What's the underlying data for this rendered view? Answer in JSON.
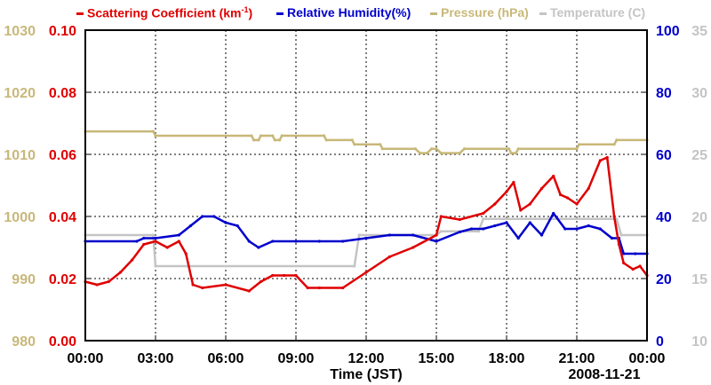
{
  "chart_data": {
    "type": "line",
    "legend": [
      {
        "label": "Scattering Coefficient (km",
        "sup": "-1",
        "tail": ")",
        "color": "#e00000"
      },
      {
        "label": "Relative Humidity(%)",
        "color": "#0000cc"
      },
      {
        "label": "Pressure (hPa)",
        "color": "#c8b878"
      },
      {
        "label": "Temperature (C)",
        "color": "#c4c4c4"
      }
    ],
    "xlabel": "Time (JST)",
    "date_label": "2008-11-21",
    "x_ticks": [
      "00:00",
      "03:00",
      "06:00",
      "09:00",
      "12:00",
      "15:00",
      "18:00",
      "21:00",
      "00:00"
    ],
    "xlim": [
      0,
      24
    ],
    "axes": {
      "pressure": {
        "ticks": [
          "980",
          "990",
          "1000",
          "1010",
          "1020",
          "1030"
        ],
        "ylim": [
          980,
          1030
        ],
        "color": "#c8b878"
      },
      "scattering": {
        "ticks": [
          "0.00",
          "0.02",
          "0.04",
          "0.06",
          "0.08",
          "0.10"
        ],
        "ylim": [
          0,
          0.1
        ],
        "color": "#e00000"
      },
      "humidity": {
        "ticks": [
          "0",
          "20",
          "40",
          "60",
          "80",
          "100"
        ],
        "ylim": [
          0,
          100
        ],
        "color": "#0000cc"
      },
      "temperature": {
        "ticks": [
          "10",
          "15",
          "20",
          "25",
          "30",
          "35"
        ],
        "ylim": [
          10,
          35
        ],
        "color": "#c4c4c4"
      }
    },
    "grid": true,
    "series": [
      {
        "name": "Pressure (hPa)",
        "axis": "pressure",
        "color": "#c8b878",
        "x": [
          0,
          2.9,
          3.0,
          7.1,
          7.2,
          7.4,
          7.5,
          8.0,
          8.1,
          8.3,
          8.4,
          10.2,
          10.3,
          11.4,
          11.5,
          12.6,
          12.7,
          14.1,
          14.3,
          14.6,
          14.8,
          15.0,
          15.2,
          16.0,
          16.2,
          18.1,
          18.2,
          18.4,
          18.5,
          21.0,
          21.1,
          22.6,
          22.7,
          24.0
        ],
        "y": [
          1013.7,
          1013.7,
          1013.0,
          1013.0,
          1012.3,
          1012.3,
          1013.0,
          1013.0,
          1012.3,
          1012.3,
          1013.0,
          1013.0,
          1012.3,
          1012.3,
          1011.6,
          1011.6,
          1010.9,
          1010.9,
          1010.2,
          1010.2,
          1010.9,
          1010.9,
          1010.2,
          1010.2,
          1010.9,
          1010.9,
          1010.2,
          1010.2,
          1010.9,
          1010.9,
          1011.6,
          1011.6,
          1012.3,
          1012.3
        ]
      },
      {
        "name": "Temperature (C)",
        "axis": "temperature",
        "color": "#c4c4c4",
        "x": [
          0,
          2.9,
          3.0,
          11.5,
          11.7,
          15.0,
          15.2,
          16.8,
          17.0,
          22.7,
          22.9,
          24.0
        ],
        "y": [
          18.5,
          18.5,
          16.0,
          16.0,
          18.5,
          18.5,
          18.8,
          18.8,
          19.8,
          19.8,
          18.5,
          18.5
        ]
      },
      {
        "name": "Relative Humidity(%)",
        "axis": "humidity",
        "color": "#0000cc",
        "x": [
          0,
          2.2,
          2.5,
          3.0,
          4.0,
          4.5,
          5.0,
          5.5,
          6.0,
          6.5,
          7.0,
          7.4,
          8.0,
          9.0,
          10.0,
          11.0,
          12.0,
          13.0,
          14.0,
          15.0,
          16.0,
          16.5,
          17.0,
          17.5,
          18.0,
          18.5,
          19.0,
          19.5,
          20.0,
          20.5,
          21.0,
          21.5,
          22.0,
          22.5,
          22.8,
          23.0,
          23.5,
          24.0
        ],
        "y": [
          32,
          32,
          33,
          33,
          34,
          37,
          40,
          40,
          38,
          37,
          32,
          30,
          32,
          32,
          32,
          32,
          33,
          34,
          34,
          32,
          35,
          36,
          36,
          37,
          38,
          33,
          38,
          34,
          41,
          36,
          36,
          37,
          36,
          33,
          33,
          28,
          28,
          28
        ]
      },
      {
        "name": "Scattering Coefficient (km-1)",
        "axis": "scattering",
        "color": "#e00000",
        "x": [
          0,
          0.5,
          1.0,
          1.5,
          2.0,
          2.5,
          3.0,
          3.5,
          4.0,
          4.3,
          4.6,
          5.0,
          6.0,
          7.0,
          7.5,
          8.0,
          8.5,
          9.0,
          9.5,
          10.0,
          11.0,
          12.0,
          13.0,
          14.0,
          15.0,
          15.2,
          16.0,
          17.0,
          17.5,
          18.0,
          18.3,
          18.6,
          19.0,
          19.5,
          20.0,
          20.3,
          20.6,
          21.0,
          21.5,
          22.0,
          22.3,
          22.6,
          22.8,
          23.0,
          23.4,
          23.7,
          24.0
        ],
        "y": [
          0.019,
          0.018,
          0.019,
          0.022,
          0.026,
          0.031,
          0.032,
          0.03,
          0.032,
          0.028,
          0.018,
          0.017,
          0.018,
          0.016,
          0.019,
          0.021,
          0.021,
          0.021,
          0.017,
          0.017,
          0.017,
          0.022,
          0.027,
          0.03,
          0.034,
          0.04,
          0.039,
          0.041,
          0.044,
          0.048,
          0.051,
          0.042,
          0.044,
          0.049,
          0.053,
          0.047,
          0.046,
          0.044,
          0.049,
          0.058,
          0.059,
          0.04,
          0.031,
          0.025,
          0.023,
          0.024,
          0.021
        ]
      }
    ]
  }
}
